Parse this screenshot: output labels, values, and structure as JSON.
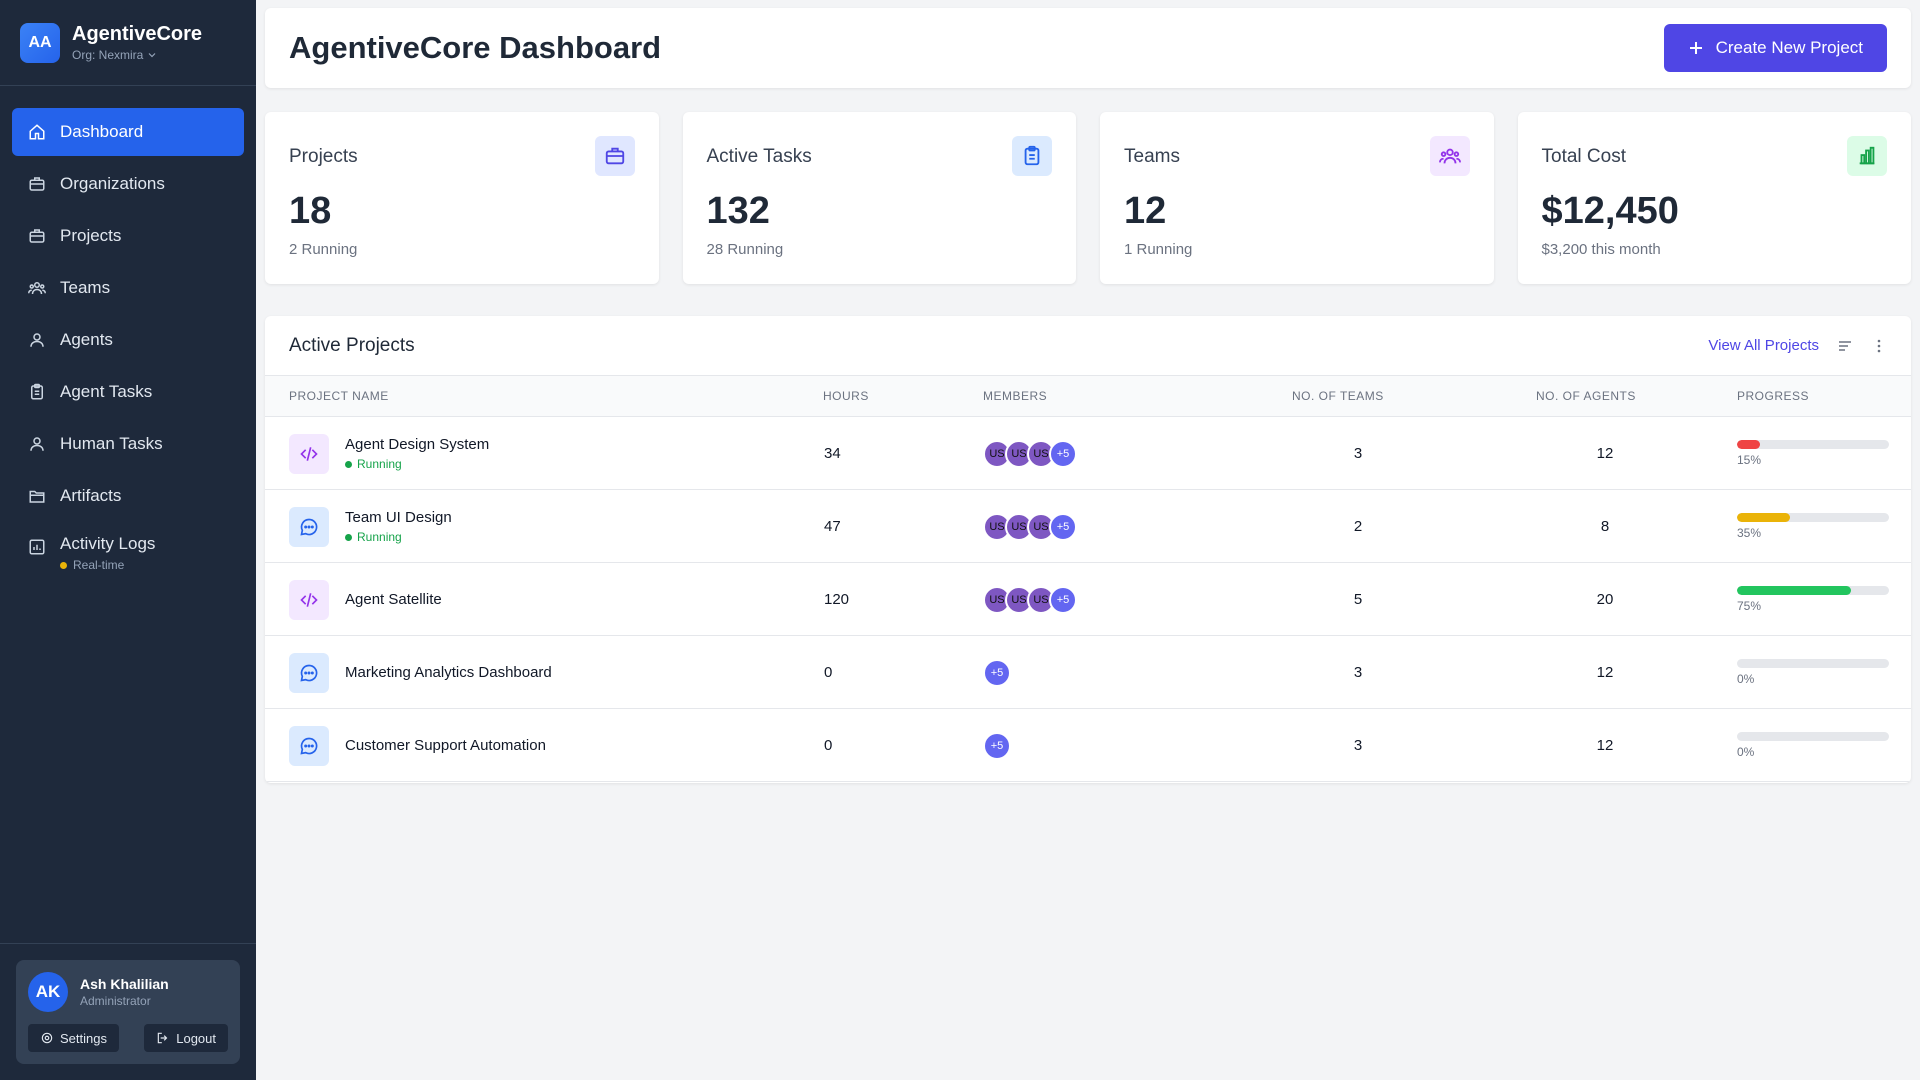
{
  "brand": {
    "logo": "AA",
    "name": "AgentiveCore",
    "org": "Org: Nexmira"
  },
  "nav": {
    "dashboard": "Dashboard",
    "organizations": "Organizations",
    "projects": "Projects",
    "teams": "Teams",
    "agents": "Agents",
    "agent_tasks": "Agent Tasks",
    "human_tasks": "Human Tasks",
    "artifacts": "Artifacts",
    "activity_logs": "Activity Logs",
    "activity_sub": "Real-time"
  },
  "user": {
    "initials": "AK",
    "name": "Ash Khalilian",
    "role": "Administrator",
    "settings": "Settings",
    "logout": "Logout"
  },
  "header": {
    "title": "AgentiveCore Dashboard",
    "create_label": "Create New Project"
  },
  "stats": {
    "projects": {
      "label": "Projects",
      "value": "18",
      "sub": "2 Running"
    },
    "tasks": {
      "label": "Active Tasks",
      "value": "132",
      "sub": "28 Running"
    },
    "teams": {
      "label": "Teams",
      "value": "12",
      "sub": "1 Running"
    },
    "cost": {
      "label": "Total Cost",
      "value": "$12,450",
      "sub": "$3,200 this month"
    }
  },
  "panel": {
    "title": "Active Projects",
    "view_all": "View All Projects"
  },
  "table": {
    "headers": {
      "name": "PROJECT NAME",
      "hours": "HOURS",
      "members": "MEMBERS",
      "teams": "NO. OF TEAMS",
      "agents": "NO. OF AGENTS",
      "progress": "PROGRESS"
    },
    "rows": [
      {
        "name": "Agent Design System",
        "status": "Running",
        "hours": "34",
        "m1": "US",
        "m2": "US",
        "m3": "US",
        "more": "+5",
        "teams": "3",
        "agents": "12",
        "progress": "15%"
      },
      {
        "name": "Team UI Design",
        "status": "Running",
        "hours": "47",
        "m1": "US",
        "m2": "US",
        "m3": "US",
        "more": "+5",
        "teams": "2",
        "agents": "8",
        "progress": "35%"
      },
      {
        "name": "Agent Satellite",
        "hours": "120",
        "m1": "US",
        "m2": "US",
        "m3": "US",
        "more": "+5",
        "teams": "5",
        "agents": "20",
        "progress": "75%"
      },
      {
        "name": "Marketing Analytics Dashboard",
        "hours": "0",
        "more": "+5",
        "teams": "3",
        "agents": "12",
        "progress": "0%"
      },
      {
        "name": "Customer Support Automation",
        "hours": "0",
        "more": "+5",
        "teams": "3",
        "agents": "12",
        "progress": "0%"
      }
    ]
  },
  "colors": {
    "accent": "#4f46e5",
    "active_nav": "#2563eb",
    "running": "#16a34a",
    "realtime": "#eab308",
    "progress_low": "#ef4444",
    "progress_mid": "#eab308",
    "progress_high": "#22c55e"
  },
  "icons": {
    "stat_projects": "briefcase-icon",
    "stat_tasks": "clipboard-icon",
    "stat_teams": "users-icon",
    "stat_cost": "bar-chart-icon",
    "row_code": "code-icon",
    "row_chat": "chat-icon"
  }
}
